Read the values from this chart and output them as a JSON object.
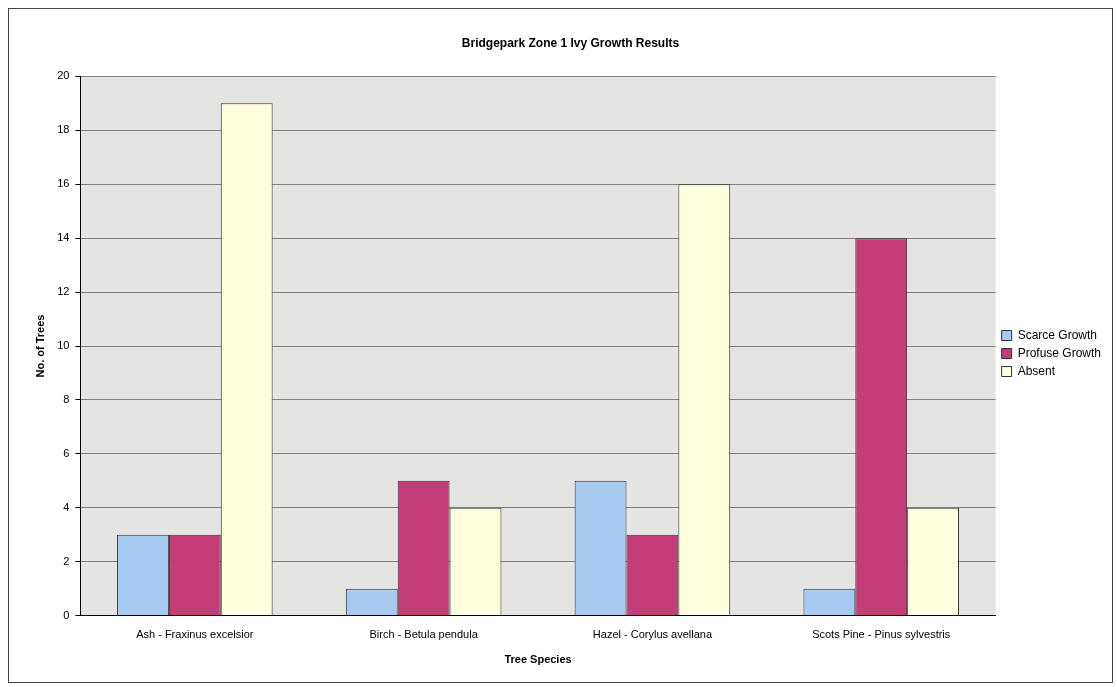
{
  "chart_data": {
    "type": "bar",
    "title": "Bridgepark Zone 1 Ivy Growth Results",
    "xlabel": "Tree Species",
    "ylabel": "No. of Trees",
    "categories": [
      "Ash - Fraxinus excelsior",
      "Birch - Betula pendula",
      "Hazel - Corylus avellana",
      "Scots Pine - Pinus sylvestris"
    ],
    "series": [
      {
        "name": "Scarce Growth",
        "color": "#a6caf0",
        "values": [
          3,
          1,
          5,
          1
        ]
      },
      {
        "name": "Profuse Growth",
        "color": "#c43c78",
        "values": [
          3,
          5,
          3,
          14
        ]
      },
      {
        "name": "Absent",
        "color": "#ffffe0",
        "values": [
          19,
          4,
          16,
          4
        ]
      }
    ],
    "ylim": [
      0,
      20
    ],
    "yticks": [
      0,
      2,
      4,
      6,
      8,
      10,
      12,
      14,
      16,
      18,
      20
    ],
    "grid": "y",
    "legend": "right"
  }
}
